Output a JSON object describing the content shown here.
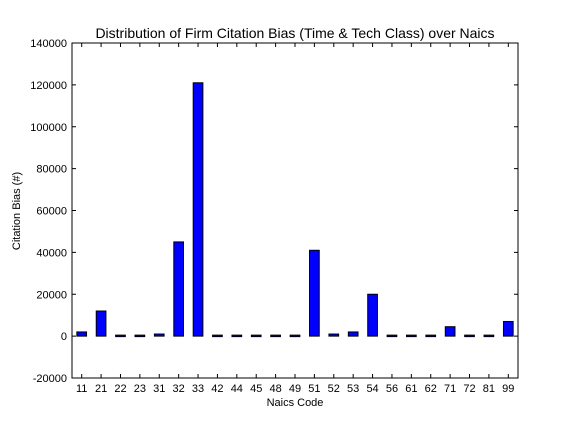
{
  "chart_data": {
    "type": "bar",
    "title": "Distribution of Firm Citation Bias (Time & Tech Class) over Naics",
    "xlabel": "Naics Code",
    "ylabel": "Citation Bias (#)",
    "categories": [
      "11",
      "21",
      "22",
      "23",
      "31",
      "32",
      "33",
      "42",
      "44",
      "45",
      "48",
      "49",
      "51",
      "52",
      "53",
      "54",
      "56",
      "61",
      "62",
      "71",
      "72",
      "81",
      "99"
    ],
    "values": [
      2000,
      12000,
      0,
      0,
      1000,
      45000,
      121000,
      500,
      0,
      500,
      0,
      500,
      41000,
      1000,
      2000,
      20000,
      500,
      0,
      0,
      4500,
      0,
      0,
      7000
    ],
    "ylim": [
      -20000,
      140000
    ],
    "yticks": [
      -20000,
      0,
      20000,
      40000,
      60000,
      80000,
      100000,
      120000,
      140000
    ],
    "grid": false,
    "bar_color": "#0000ff",
    "bar_edge_color": "#000000"
  }
}
